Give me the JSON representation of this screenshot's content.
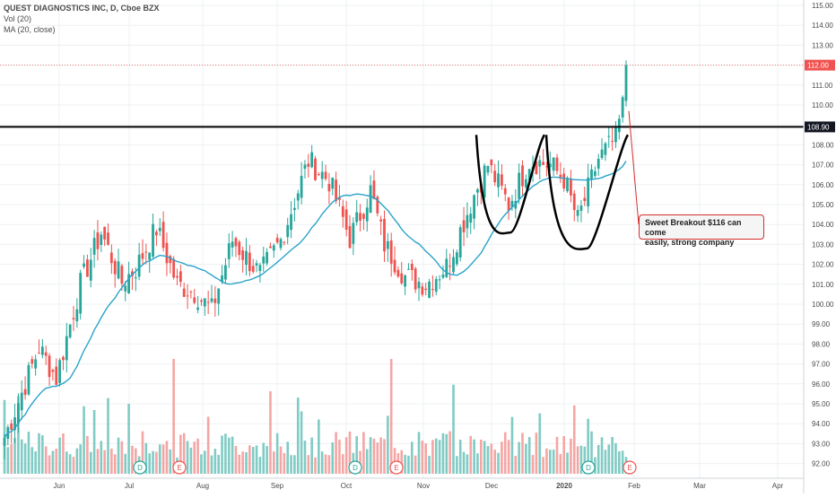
{
  "header": {
    "symbol_line": "QUEST DIAGNOSTICS INC, D, Cboe BZX",
    "vol_line": "Vol (20)",
    "ma_line": "MA (20, close)"
  },
  "annotation": {
    "line1": "Sweet Breakout $116 can come",
    "line2": "easily, strong company"
  },
  "colors": {
    "up": "#26a69a",
    "down": "#ef5350",
    "vol_up": "#80cbc4",
    "vol_down": "#f4a6a4",
    "ma": "#29a3c9",
    "resistance": "#000000",
    "price_line": "#ef5350"
  },
  "chart_data": {
    "type": "candlestick",
    "title": "QUEST DIAGNOSTICS INC, D, Cboe BZX",
    "ylim": [
      91.6,
      115.2
    ],
    "y_ticks": [
      "115.00",
      "114.00",
      "113.00",
      "112.00",
      "111.00",
      "110.00",
      "109.00",
      "108.00",
      "107.00",
      "106.00",
      "105.00",
      "104.00",
      "103.00",
      "102.00",
      "101.00",
      "100.00",
      "99.00",
      "98.00",
      "97.00",
      "96.00",
      "95.00",
      "94.00",
      "93.00",
      "92.00"
    ],
    "x_ticks": [
      "Jun",
      "Jul",
      "Aug",
      "Sep",
      "Oct",
      "Nov",
      "Dec",
      "2020",
      "Feb",
      "Mar",
      "Apr"
    ],
    "resistance_level": "108.90",
    "last_price": "112.00",
    "events": [
      "D",
      "E",
      "D",
      "E",
      "D",
      "E",
      "D",
      "E"
    ],
    "series": [
      {
        "name": "Vol (20)",
        "type": "volume"
      },
      {
        "name": "MA (20, close)",
        "type": "line"
      }
    ]
  }
}
